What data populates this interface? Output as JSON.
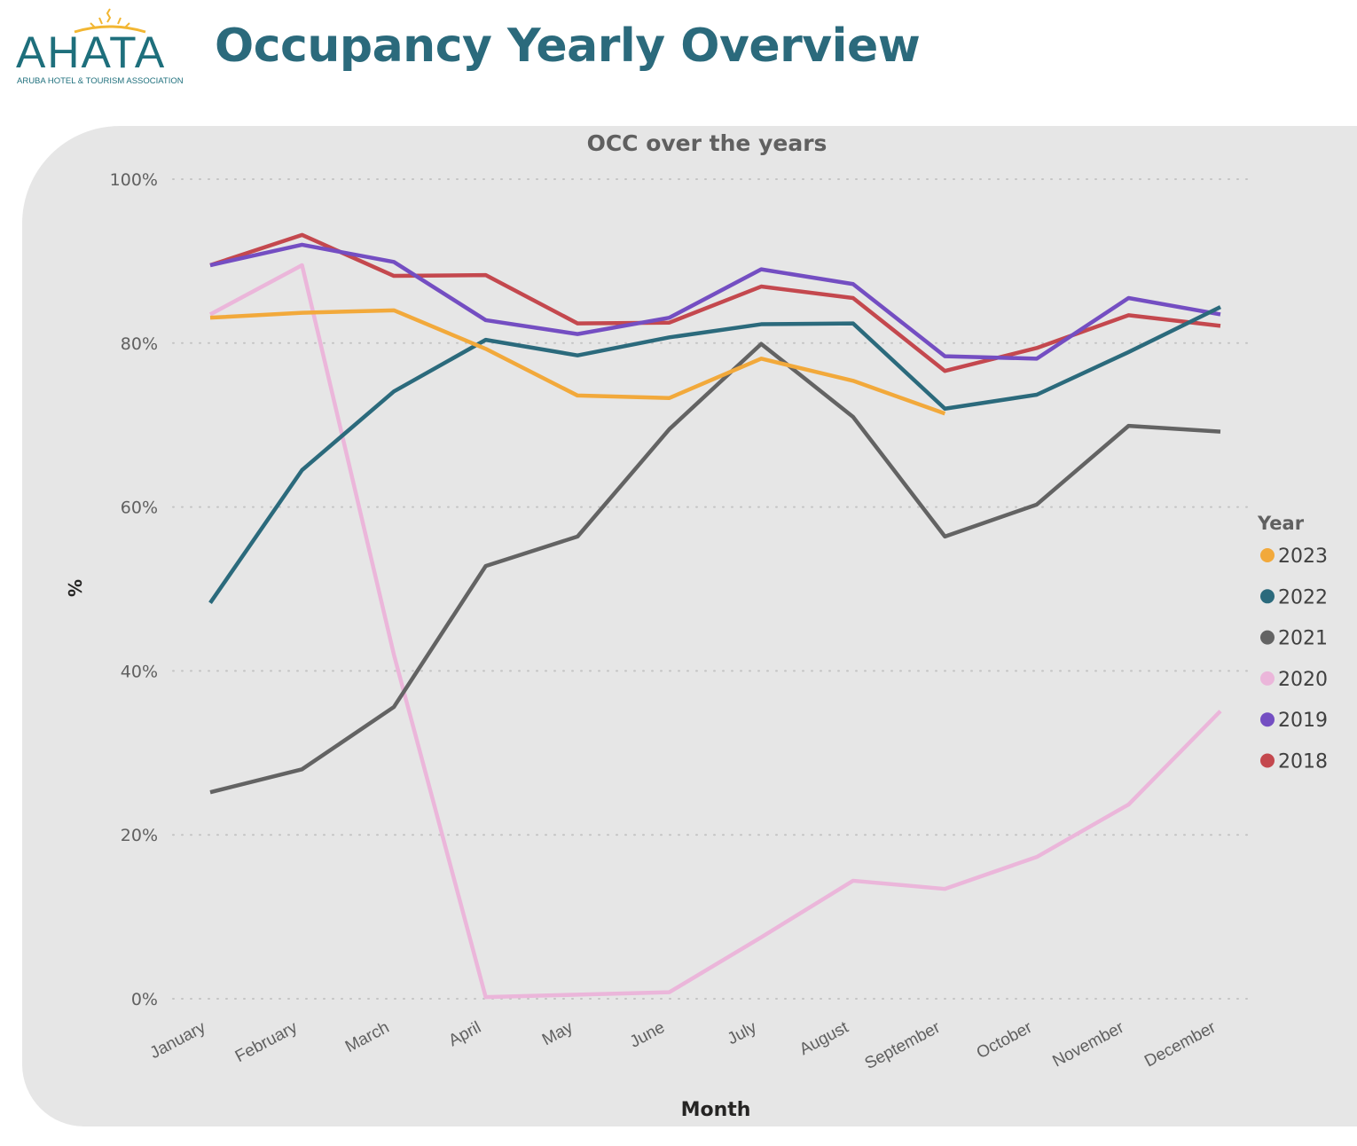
{
  "header": {
    "logo_text": "AHATA",
    "logo_subtext": "ARUBA HOTEL & TOURISM ASSOCIATION",
    "title": "Occupancy Yearly Overview"
  },
  "chart_data": {
    "type": "line",
    "title": "OCC over the years",
    "xlabel": "Month",
    "ylabel": "%",
    "ylim": [
      0,
      100
    ],
    "yticks": [
      "0%",
      "20%",
      "40%",
      "60%",
      "80%",
      "100%"
    ],
    "ytick_values": [
      0,
      20,
      40,
      60,
      80,
      100
    ],
    "grid": true,
    "legend_title": "Year",
    "legend_position": "right",
    "categories": [
      "January",
      "February",
      "March",
      "April",
      "May",
      "June",
      "July",
      "August",
      "September",
      "October",
      "November",
      "December"
    ],
    "series": [
      {
        "name": "2023",
        "color": "#f2a93b",
        "values": [
          83.1,
          83.7,
          84.0,
          79.3,
          73.6,
          73.3,
          78.1,
          75.4,
          71.4,
          null,
          null,
          null
        ]
      },
      {
        "name": "2022",
        "color": "#2b6a7c",
        "values": [
          48.3,
          64.5,
          74.1,
          80.4,
          78.5,
          80.7,
          82.3,
          82.4,
          72.0,
          73.7,
          78.9,
          84.4
        ]
      },
      {
        "name": "2021",
        "color": "#636363",
        "values": [
          25.2,
          28.0,
          35.6,
          52.8,
          56.4,
          69.5,
          79.9,
          71.0,
          56.4,
          60.3,
          69.9,
          69.2
        ]
      },
      {
        "name": "2020",
        "color": "#ebb6da",
        "values": [
          83.5,
          89.5,
          42.0,
          0.2,
          0.5,
          0.8,
          7.5,
          14.4,
          13.4,
          17.3,
          23.7,
          35.1
        ]
      },
      {
        "name": "2019",
        "color": "#744ec2",
        "values": [
          89.5,
          92.0,
          89.9,
          82.8,
          81.1,
          83.1,
          89.0,
          87.2,
          78.4,
          78.1,
          85.5,
          83.5
        ]
      },
      {
        "name": "2018",
        "color": "#c4484e",
        "values": [
          89.5,
          93.2,
          88.2,
          88.3,
          82.4,
          82.5,
          86.9,
          85.5,
          76.6,
          79.4,
          83.4,
          82.1
        ]
      }
    ]
  }
}
